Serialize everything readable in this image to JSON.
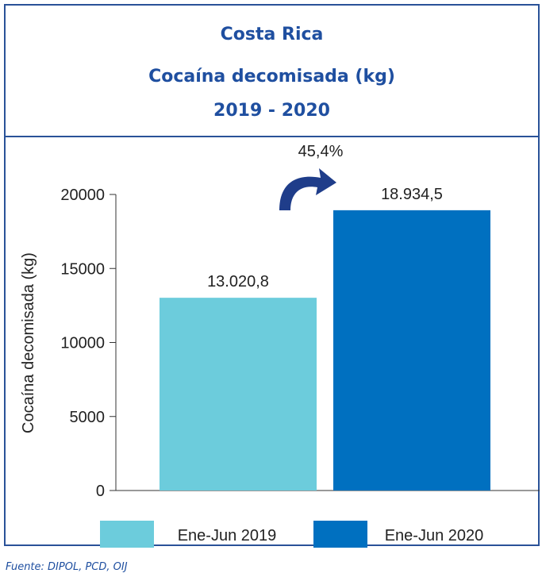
{
  "chart_data": {
    "type": "bar",
    "title_lines": [
      "Costa Rica",
      "Cocaína decomisada (kg)",
      "2019 - 2020"
    ],
    "ylabel": "Cocaína decomisada (kg)",
    "xlabel": "",
    "ylim": [
      0,
      20000
    ],
    "yticks": [
      "0",
      "5000",
      "10000",
      "15000",
      "20000"
    ],
    "categories": [
      "Ene-Jun 2019",
      "Ene-Jun 2020"
    ],
    "values": [
      13020.8,
      18934.5
    ],
    "value_labels": [
      "13.020,8",
      "18.934,5"
    ],
    "colors": [
      "#6cccdc",
      "#0070c0"
    ],
    "annotation": "45,4%",
    "legend_position": "bottom",
    "grid": false
  },
  "source": "Fuente: DIPOL, PCD, OIJ",
  "arrow_color": "#1f3d8a"
}
